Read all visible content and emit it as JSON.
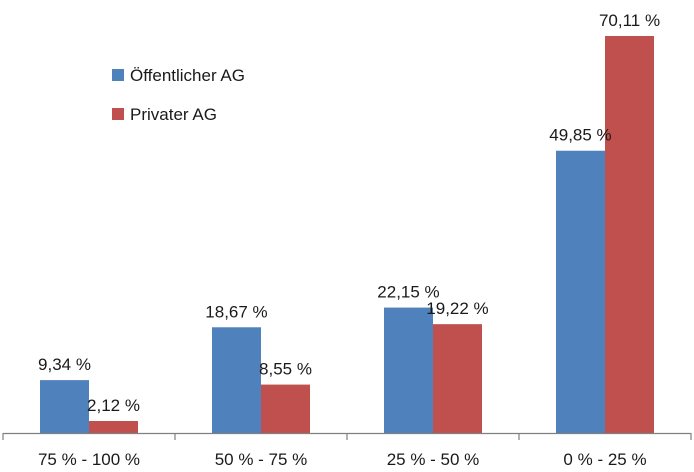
{
  "chart_data": {
    "type": "bar",
    "categories": [
      "75 % - 100 %",
      "50 % - 75 %",
      "25 % - 50 %",
      "0 % - 25 %"
    ],
    "series": [
      {
        "name": "Öffentlicher AG",
        "color": "#4f81bd",
        "values": [
          9.34,
          18.67,
          22.15,
          49.85
        ],
        "labels": [
          "9,34 %",
          "18,67 %",
          "22,15 %",
          "49,85 %"
        ]
      },
      {
        "name": "Privater AG",
        "color": "#c0504d",
        "values": [
          2.12,
          8.55,
          19.22,
          70.11
        ],
        "labels": [
          "2,12 %",
          "8,55 %",
          "19,22 %",
          "70,11 %"
        ]
      }
    ],
    "ylim": [
      0,
      70.11
    ],
    "grid": false,
    "legend_position": "top-left"
  }
}
